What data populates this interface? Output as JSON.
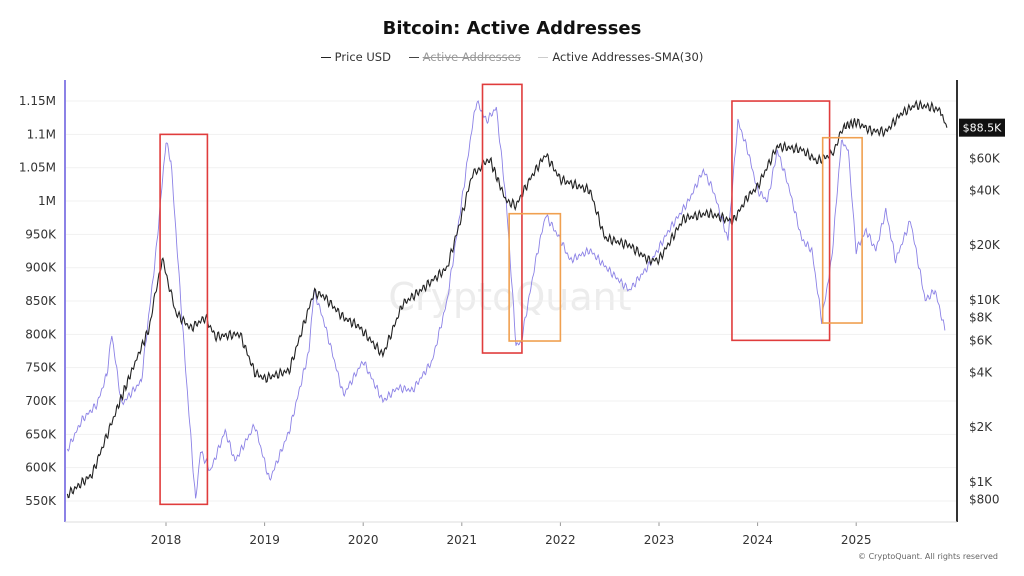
{
  "chart_data": {
    "type": "line",
    "title": "Bitcoin: Active Addresses",
    "legend": [
      {
        "name": "Price USD",
        "color": "#222222",
        "hidden": false
      },
      {
        "name": "Active Addresses",
        "color": "#444444",
        "hidden": true
      },
      {
        "name": "Active Addresses-SMA(30)",
        "color": "#8c82e6",
        "hidden": false
      }
    ],
    "legend_position": "top",
    "x_ticks": [
      "2018",
      "2019",
      "2020",
      "2021",
      "2022",
      "2023",
      "2024",
      "2025"
    ],
    "y_left": {
      "ticks": [
        "550K",
        "600K",
        "650K",
        "700K",
        "750K",
        "800K",
        "850K",
        "900K",
        "950K",
        "1M",
        "1.05M",
        "1.1M",
        "1.15M"
      ],
      "range": [
        530000,
        1180000
      ],
      "scale": "linear"
    },
    "y_right": {
      "ticks": [
        "$800",
        "$1K",
        "$2K",
        "$4K",
        "$6K",
        "$8K",
        "$10K",
        "$20K",
        "$40K",
        "$60K"
      ],
      "scale": "log",
      "range": [
        700,
        140000
      ],
      "last_value_label": "$88.5K"
    },
    "grid": true,
    "watermark": "CryptoQuant",
    "series": [
      {
        "name": "Price USD",
        "axis": "right",
        "color": "#222222",
        "x": [
          2017.0,
          2017.25,
          2017.5,
          2017.67,
          2017.83,
          2017.96,
          2018.1,
          2018.25,
          2018.4,
          2018.5,
          2018.75,
          2018.9,
          2019.0,
          2019.25,
          2019.5,
          2019.6,
          2019.8,
          2019.95,
          2020.2,
          2020.4,
          2020.6,
          2020.85,
          2021.0,
          2021.1,
          2021.28,
          2021.45,
          2021.55,
          2021.7,
          2021.85,
          2022.0,
          2022.3,
          2022.45,
          2022.7,
          2022.9,
          2023.0,
          2023.25,
          2023.5,
          2023.75,
          2023.9,
          2024.0,
          2024.2,
          2024.45,
          2024.6,
          2024.75,
          2024.88,
          2025.0,
          2025.15,
          2025.3,
          2025.45,
          2025.6,
          2025.75,
          2025.85,
          2025.92
        ],
        "values": [
          850,
          1100,
          2500,
          4300,
          7000,
          17000,
          8500,
          7000,
          8000,
          6300,
          6500,
          4000,
          3700,
          4100,
          11000,
          10500,
          8000,
          7200,
          5000,
          9500,
          11500,
          15000,
          29000,
          48000,
          60000,
          35000,
          33000,
          47000,
          63000,
          46000,
          40000,
          22000,
          20000,
          16500,
          16600,
          28000,
          30000,
          27000,
          37000,
          42000,
          70000,
          67000,
          58000,
          63000,
          90000,
          95000,
          85000,
          84000,
          105000,
          118000,
          115000,
          110000,
          88500
        ]
      },
      {
        "name": "Active Addresses-SMA(30)",
        "axis": "left",
        "color": "#8c82e6",
        "x": [
          2017.0,
          2017.15,
          2017.3,
          2017.4,
          2017.45,
          2017.55,
          2017.75,
          2017.9,
          2018.0,
          2018.05,
          2018.2,
          2018.3,
          2018.35,
          2018.45,
          2018.6,
          2018.7,
          2018.9,
          2019.05,
          2019.25,
          2019.45,
          2019.5,
          2019.6,
          2019.8,
          2020.0,
          2020.2,
          2020.35,
          2020.5,
          2020.7,
          2020.85,
          2021.0,
          2021.1,
          2021.15,
          2021.25,
          2021.35,
          2021.45,
          2021.55,
          2021.6,
          2021.75,
          2021.85,
          2022.0,
          2022.1,
          2022.3,
          2022.5,
          2022.7,
          2022.9,
          2023.1,
          2023.3,
          2023.45,
          2023.55,
          2023.7,
          2023.8,
          2023.9,
          2024.0,
          2024.1,
          2024.2,
          2024.3,
          2024.45,
          2024.55,
          2024.65,
          2024.75,
          2024.85,
          2024.92,
          2025.0,
          2025.1,
          2025.2,
          2025.3,
          2025.4,
          2025.55,
          2025.7,
          2025.8,
          2025.9
        ],
        "values": [
          627000,
          672000,
          695000,
          740000,
          800000,
          695000,
          730000,
          925000,
          1090000,
          1060000,
          746000,
          550000,
          625000,
          595000,
          655000,
          610000,
          664000,
          581000,
          655000,
          775000,
          866000,
          820000,
          709000,
          760000,
          700000,
          720000,
          716000,
          760000,
          850000,
          1000000,
          1106000,
          1150000,
          1120000,
          1140000,
          1000000,
          784000,
          787000,
          911000,
          979000,
          942000,
          911000,
          926000,
          895000,
          866000,
          904000,
          956000,
          1000000,
          1046000,
          1016000,
          942000,
          1120000,
          1076000,
          1016000,
          1000000,
          1076000,
          1030000,
          942000,
          926000,
          821000,
          911000,
          1090000,
          1076000,
          926000,
          956000,
          926000,
          986000,
          911000,
          971000,
          851000,
          866000,
          806000
        ]
      }
    ],
    "annotations": [
      {
        "type": "box",
        "color": "#e03c3c",
        "x": [
          2017.94,
          2018.42
        ],
        "y": [
          545000,
          1100000
        ]
      },
      {
        "type": "box",
        "color": "#e03c3c",
        "x": [
          2021.21,
          2021.61
        ],
        "y": [
          772000,
          1175000
        ]
      },
      {
        "type": "box",
        "color": "#e03c3c",
        "x": [
          2023.74,
          2024.73
        ],
        "y": [
          791000,
          1150000
        ]
      },
      {
        "type": "box",
        "color": "#f0a050",
        "x": [
          2021.48,
          2022.0
        ],
        "y": [
          790000,
          981000
        ]
      },
      {
        "type": "box",
        "color": "#f0a050",
        "x": [
          2024.66,
          2025.06
        ],
        "y": [
          817000,
          1095000
        ]
      }
    ]
  },
  "footer": {
    "copyright": "© CryptoQuant. All rights reserved"
  }
}
